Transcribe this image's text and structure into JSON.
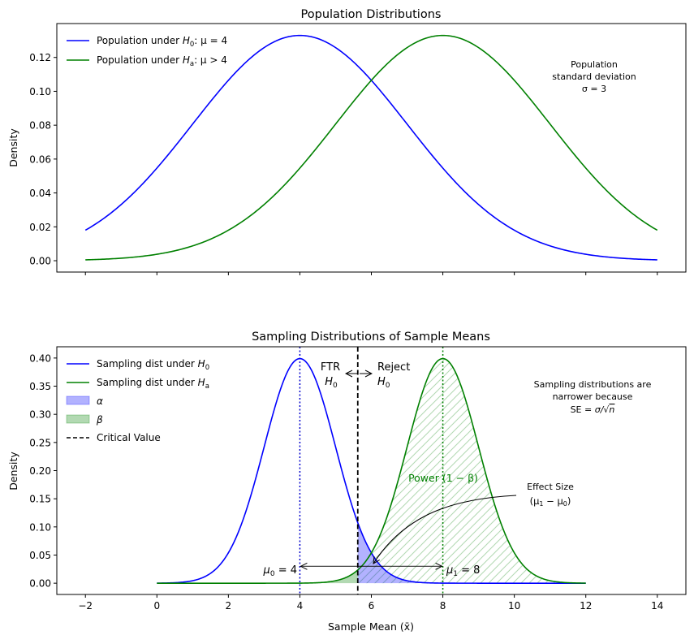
{
  "chart_data": [
    {
      "type": "line",
      "title": "Population Distributions",
      "xlabel": "",
      "ylabel": "Density",
      "xlim": [
        -2.8,
        14.8
      ],
      "ylim": [
        -0.0067,
        0.14
      ],
      "xticks": [
        -2,
        0,
        2,
        4,
        6,
        8,
        10,
        12,
        14
      ],
      "show_xtick_labels": false,
      "yticks": [
        0.0,
        0.02,
        0.04,
        0.06,
        0.08,
        0.1,
        0.12
      ],
      "ytick_labels": [
        "0.00",
        "0.02",
        "0.04",
        "0.06",
        "0.08",
        "0.10",
        "0.12"
      ],
      "grid": false,
      "legend_position": "top-left",
      "x_range": [
        -2,
        14
      ],
      "series": [
        {
          "name": "Population under H0: μ = 4",
          "legend_main": "Population under ",
          "legend_sym": "H",
          "legend_sub": "0",
          "legend_tail": ": μ = 4",
          "distribution": "normal",
          "mean": 4,
          "sd": 3,
          "color": "#0000ff"
        },
        {
          "name": "Population under Ha: μ > 4",
          "legend_main": "Population under ",
          "legend_sym": "H",
          "legend_sub": "a",
          "legend_tail": ": μ > 4",
          "distribution": "normal",
          "mean": 8,
          "sd": 3,
          "color": "#008000"
        }
      ],
      "annotation": {
        "lines": [
          "Population",
          "standard deviation",
          "σ = 3"
        ]
      }
    },
    {
      "type": "line",
      "title": "Sampling Distributions of Sample Means",
      "xlabel": "Sample Mean (x̄)",
      "ylabel": "Density",
      "xlim": [
        -2.8,
        14.8
      ],
      "ylim": [
        -0.02,
        0.42
      ],
      "xticks": [
        -2,
        0,
        2,
        4,
        6,
        8,
        10,
        12,
        14
      ],
      "xtick_labels": [
        "−2",
        "0",
        "2",
        "4",
        "6",
        "8",
        "10",
        "12",
        "14"
      ],
      "yticks": [
        0.0,
        0.05,
        0.1,
        0.15,
        0.2,
        0.25,
        0.3,
        0.35,
        0.4
      ],
      "ytick_labels": [
        "0.00",
        "0.05",
        "0.10",
        "0.15",
        "0.20",
        "0.25",
        "0.30",
        "0.35",
        "0.40"
      ],
      "grid": false,
      "legend_position": "top-left",
      "x_range": [
        0,
        12
      ],
      "critical_value": 5.62,
      "series": [
        {
          "name": "Sampling dist under H0",
          "legend_main": "Sampling dist under ",
          "legend_sym": "H",
          "legend_sub": "0",
          "distribution": "normal",
          "mean": 4,
          "sd": 1,
          "color": "#0000ff"
        },
        {
          "name": "Sampling dist under Ha",
          "legend_main": "Sampling dist under ",
          "legend_sym": "H",
          "legend_sub": "a",
          "distribution": "normal",
          "mean": 8,
          "sd": 1,
          "color": "#008000"
        }
      ],
      "legend_extra": [
        {
          "label": "α",
          "kind": "patch",
          "color": "#0000ff"
        },
        {
          "label": "β",
          "kind": "patch",
          "color": "#008000"
        },
        {
          "label": "Critical Value",
          "kind": "dashed",
          "color": "#000000"
        }
      ],
      "mean_lines": [
        {
          "x": 4,
          "color": "#0000ff",
          "label": "μ0 = 4",
          "sym": "μ",
          "sub": "0",
          "tail": " = 4"
        },
        {
          "x": 8,
          "color": "#008000",
          "label": "μ1 = 8",
          "sym": "μ",
          "sub": "1",
          "tail": " = 8"
        }
      ],
      "annotations": {
        "ftr": {
          "line1": "FTR",
          "sym": "H",
          "sub": "0"
        },
        "reject": {
          "line1": "Reject",
          "sym": "H",
          "sub": "0"
        },
        "power": "Power (1 − β)",
        "effect_size": {
          "line1": "Effect Size",
          "line2": "(μ1 − μ0)",
          "l2a": "(μ",
          "l2b": "1",
          "l2c": " − μ",
          "l2d": "0",
          "l2e": ")"
        },
        "se_note": {
          "line1": "Sampling distributions are",
          "line2": "narrower because",
          "line3": "SE = σ/√n",
          "l3a": "SE = ",
          "l3b": "σ/√",
          "l3c": "n"
        }
      }
    }
  ]
}
